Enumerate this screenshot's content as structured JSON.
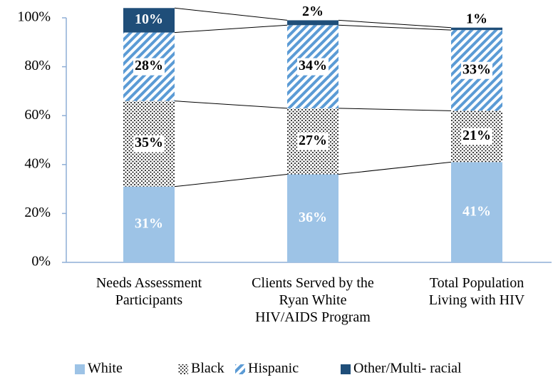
{
  "chart_data": {
    "type": "stacked_bar",
    "categories": [
      "Needs Assessment\nParticipants",
      "Clients Served by the\nRyan White\nHIV/AIDS Program",
      "Total Population\nLiving with HIV"
    ],
    "series": [
      {
        "name": "White",
        "color": "#9dc3e6",
        "fill_style": "solid",
        "values": [
          31,
          36,
          41
        ],
        "value_labels": [
          "31%",
          "36%",
          "41%"
        ]
      },
      {
        "name": "Black",
        "color": "#000000",
        "fill_style": "dotted",
        "values": [
          35,
          27,
          21
        ],
        "value_labels": [
          "35%",
          "27%",
          "21%"
        ]
      },
      {
        "name": "Hispanic",
        "color": "#5b9bd5",
        "fill_style": "hatched",
        "values": [
          28,
          34,
          33
        ],
        "value_labels": [
          "28%",
          "34%",
          "33%"
        ]
      },
      {
        "name": "Other/Multi- racial",
        "color": "#1f4e79",
        "fill_style": "solid",
        "values": [
          10,
          2,
          1
        ],
        "value_labels": [
          "10%",
          "2%",
          "1%"
        ]
      }
    ],
    "ylim": [
      0,
      100
    ],
    "yticks": [
      {
        "value": 0,
        "label": "0%"
      },
      {
        "value": 20,
        "label": "20%"
      },
      {
        "value": 40,
        "label": "40%"
      },
      {
        "value": 60,
        "label": "60%"
      },
      {
        "value": 80,
        "label": "80%"
      },
      {
        "value": 100,
        "label": "100%"
      }
    ],
    "legend": "bottom"
  }
}
